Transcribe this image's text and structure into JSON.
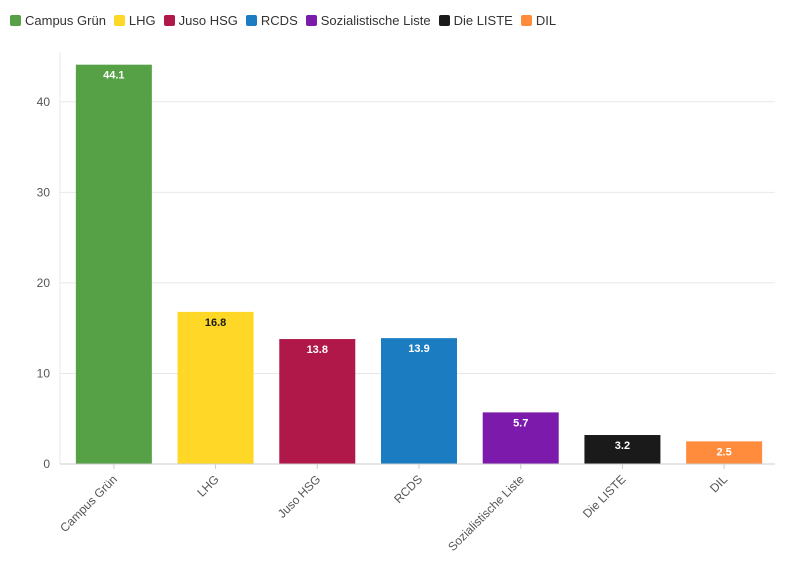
{
  "chart_data": {
    "type": "bar",
    "categories": [
      "Campus Grün",
      "LHG",
      "Juso HSG",
      "RCDS",
      "Sozialistische Liste",
      "Die LISTE",
      "DIL"
    ],
    "values": [
      44.1,
      16.8,
      13.8,
      13.9,
      5.7,
      3.2,
      2.5
    ],
    "value_labels": [
      "44.1",
      "16.8",
      "13.8",
      "13.9",
      "5.7",
      "3.2",
      "2.5"
    ],
    "colors": [
      "#56a046",
      "#ffd726",
      "#b0184a",
      "#1b7cc1",
      "#7b1aab",
      "#1a1a1a",
      "#ff8c3c"
    ],
    "label_colors": [
      "#ffffff",
      "#1a1a1a",
      "#ffffff",
      "#ffffff",
      "#ffffff",
      "#ffffff",
      "#ffffff"
    ],
    "legend": [
      "Campus Grün",
      "LHG",
      "Juso HSG",
      "RCDS",
      "Sozialistische Liste",
      "Die LISTE",
      "DIL"
    ],
    "legend_position": "top-left",
    "yticks": [
      "0",
      "10",
      "20",
      "30",
      "40"
    ],
    "ylim": [
      0,
      45.5
    ],
    "grid": true,
    "title": "",
    "xlabel": "",
    "ylabel": ""
  }
}
